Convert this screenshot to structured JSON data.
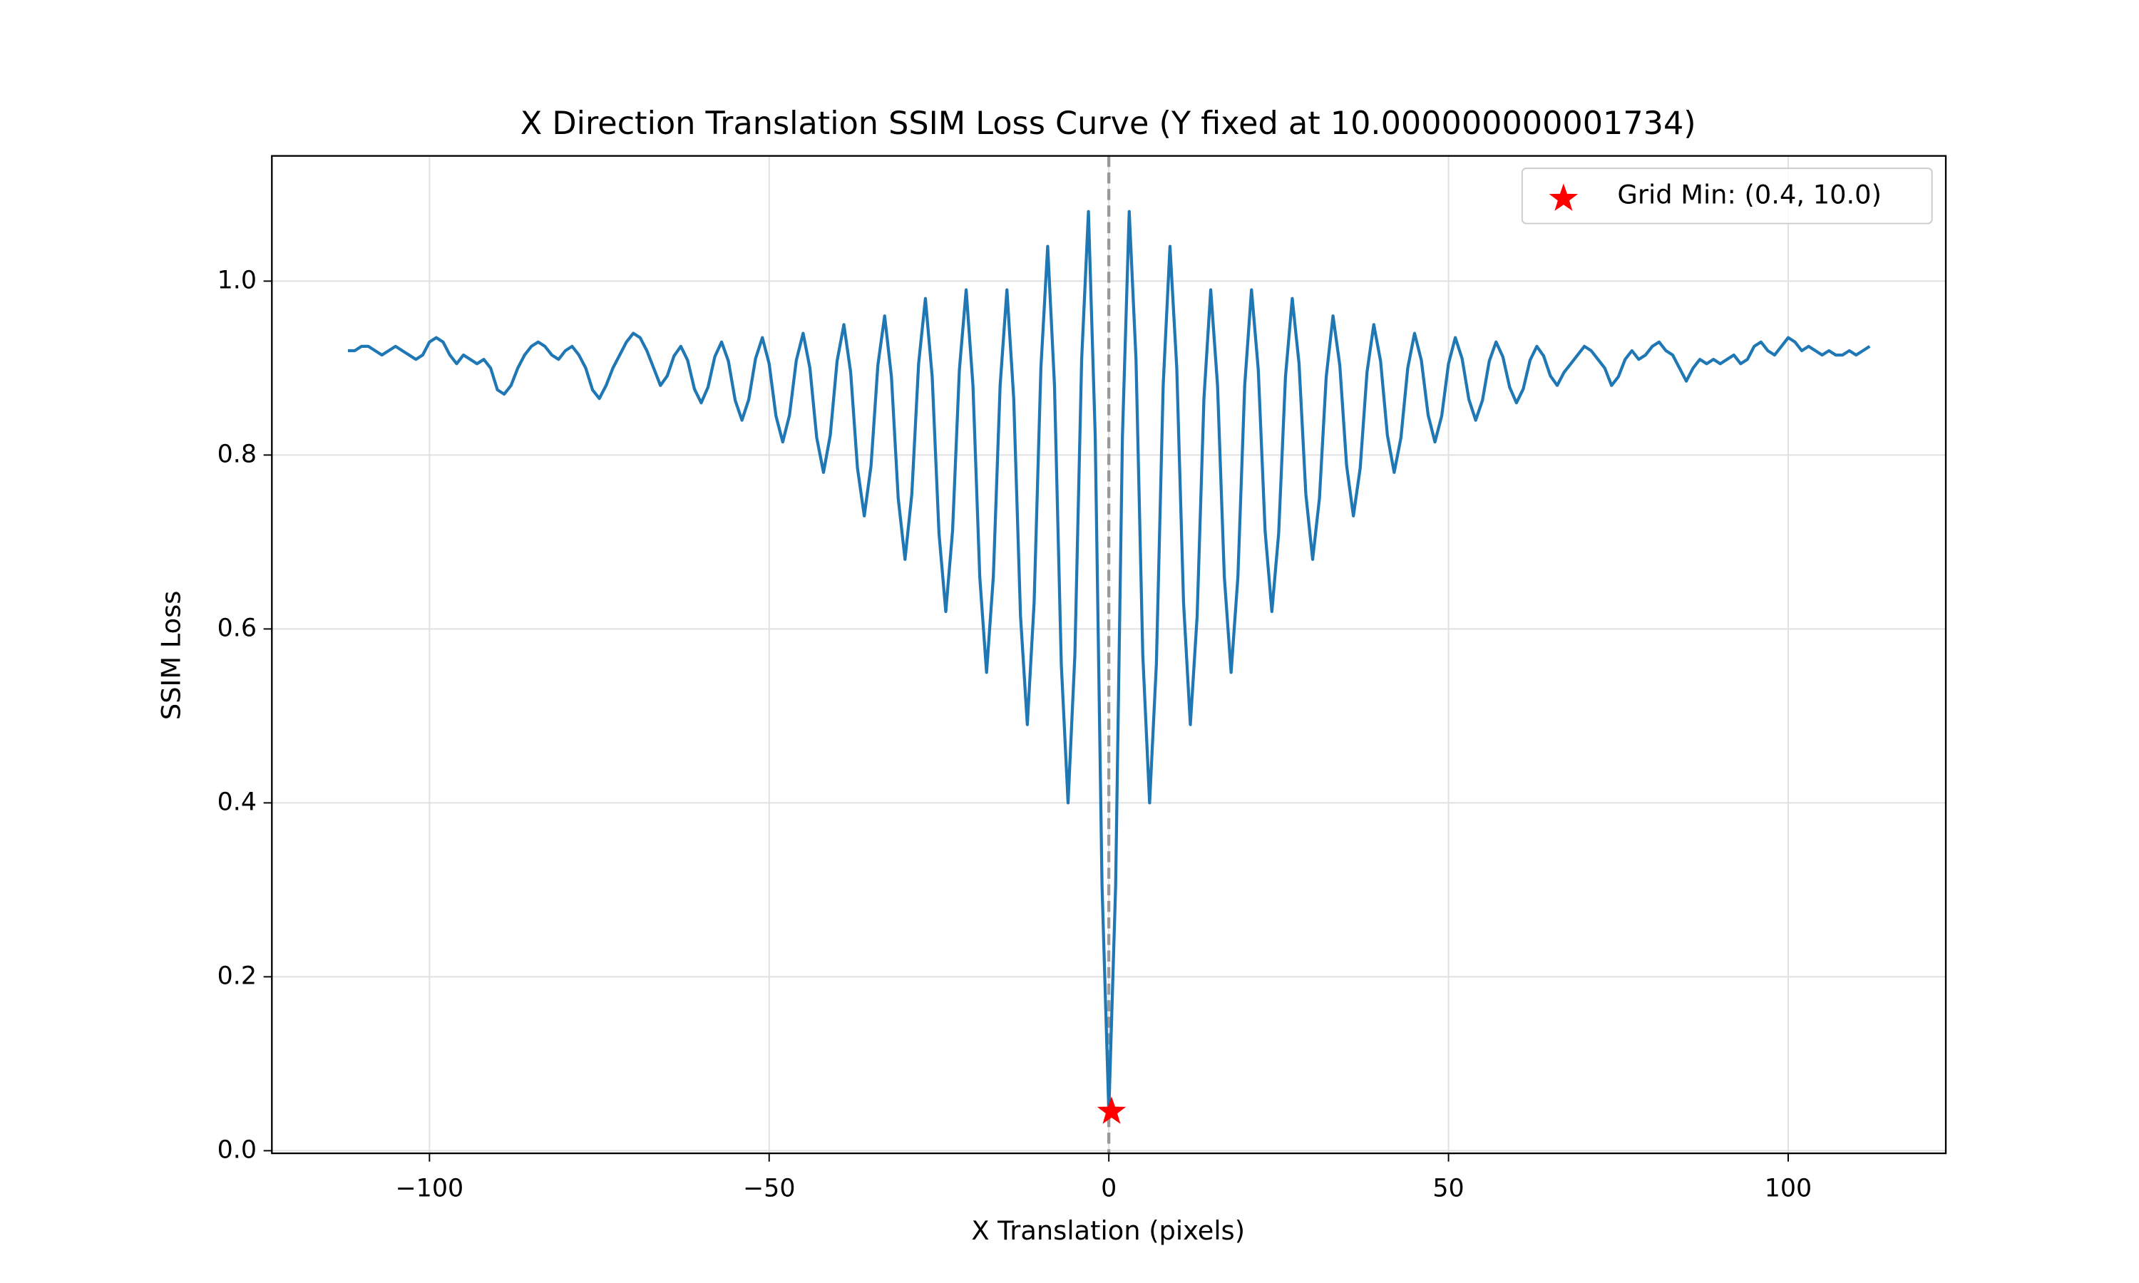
{
  "chart_data": {
    "type": "line",
    "title": "X Direction Translation SSIM Loss Curve (Y fixed at 10.000000000001734)",
    "x_label": "X Translation (pixels)",
    "y_label": "SSIM Loss",
    "xlim": [
      -123.2,
      123.2
    ],
    "ylim": [
      -0.003,
      1.144
    ],
    "xticks": [
      {
        "value": -100,
        "label": "−100"
      },
      {
        "value": -50,
        "label": "−50"
      },
      0,
      50,
      100
    ],
    "yticks": [
      {
        "value": 0,
        "label": "0.0"
      },
      0.2,
      0.4,
      0.6,
      0.8,
      {
        "value": 1,
        "label": "1.0"
      }
    ],
    "grid": true,
    "legend": "upper right",
    "vline": {
      "x": 0,
      "color": "#999999"
    },
    "marker": {
      "name": "Grid Min: (0.4, 10.0)",
      "x": 0.4,
      "y": 0.045,
      "color": "#ff0000"
    },
    "x": [
      -112,
      -111,
      -110,
      -109,
      -108,
      -107,
      -106,
      -105,
      -104,
      -103,
      -102,
      -101,
      -100,
      -99,
      -98,
      -97,
      -96,
      -95,
      -94,
      -93,
      -92,
      -91,
      -90,
      -89,
      -88,
      -87,
      -86,
      -85,
      -84,
      -83,
      -82,
      -81,
      -80,
      -79,
      -78,
      -77,
      -76,
      -75,
      -74,
      -73,
      -72,
      -71,
      -70,
      -69,
      -68,
      -67,
      -66,
      -65,
      -64,
      -63,
      -62,
      -61,
      -60,
      -59,
      -58,
      -57,
      -56,
      -55,
      -54,
      -53,
      -52,
      -51,
      -50,
      -49,
      -48,
      -47,
      -46,
      -45,
      -44,
      -43,
      -42,
      -41,
      -40,
      -39,
      -38,
      -37,
      -36,
      -35,
      -34,
      -33,
      -32,
      -31,
      -30,
      -29,
      -28,
      -27,
      -26,
      -25,
      -24,
      -23,
      -22,
      -21,
      -20,
      -19,
      -18,
      -17,
      -16,
      -15,
      -14,
      -13,
      -12,
      -11,
      -10,
      -9,
      -8,
      -7,
      -6,
      -5,
      -4,
      -3,
      -2,
      -1,
      0,
      1,
      2,
      3,
      4,
      5,
      6,
      7,
      8,
      9,
      10,
      11,
      12,
      13,
      14,
      15,
      16,
      17,
      18,
      19,
      20,
      21,
      22,
      23,
      24,
      25,
      26,
      27,
      28,
      29,
      30,
      31,
      32,
      33,
      34,
      35,
      36,
      37,
      38,
      39,
      40,
      41,
      42,
      43,
      44,
      45,
      46,
      47,
      48,
      49,
      50,
      51,
      52,
      53,
      54,
      55,
      56,
      57,
      58,
      59,
      60,
      61,
      62,
      63,
      64,
      65,
      66,
      67,
      68,
      69,
      70,
      71,
      72,
      73,
      74,
      75,
      76,
      77,
      78,
      79,
      80,
      81,
      82,
      83,
      84,
      85,
      86,
      87,
      88,
      89,
      90,
      91,
      92,
      93,
      94,
      95,
      96,
      97,
      98,
      99,
      100,
      101,
      102,
      103,
      104,
      105,
      106,
      107,
      108,
      109,
      110,
      111,
      112
    ],
    "series": [
      {
        "color": "#1f77b4",
        "values": [
          0.92,
          0.92,
          0.925,
          0.925,
          0.92,
          0.915,
          0.92,
          0.925,
          0.92,
          0.915,
          0.91,
          0.915,
          0.93,
          0.935,
          0.93,
          0.915,
          0.905,
          0.915,
          0.91,
          0.905,
          0.91,
          0.9,
          0.875,
          0.87,
          0.88,
          0.9,
          0.915,
          0.925,
          0.93,
          0.925,
          0.915,
          0.91,
          0.92,
          0.925,
          0.915,
          0.9,
          0.875,
          0.865,
          0.88,
          0.9,
          0.915,
          0.93,
          0.94,
          0.935,
          0.92,
          0.9,
          0.88,
          0.891,
          0.914,
          0.925,
          0.909,
          0.876,
          0.86,
          0.878,
          0.913,
          0.93,
          0.908,
          0.863,
          0.84,
          0.864,
          0.911,
          0.935,
          0.905,
          0.845,
          0.815,
          0.846,
          0.909,
          0.94,
          0.9,
          0.82,
          0.78,
          0.823,
          0.908,
          0.95,
          0.895,
          0.785,
          0.73,
          0.788,
          0.903,
          0.96,
          0.89,
          0.75,
          0.68,
          0.755,
          0.905,
          0.98,
          0.89,
          0.71,
          0.62,
          0.713,
          0.898,
          0.99,
          0.88,
          0.66,
          0.55,
          0.66,
          0.88,
          0.99,
          0.865,
          0.615,
          0.49,
          0.63,
          0.9,
          1.04,
          0.88,
          0.56,
          0.4,
          0.57,
          0.91,
          1.08,
          0.821,
          0.304,
          0.045,
          0.304,
          0.821,
          1.08,
          0.91,
          0.57,
          0.4,
          0.56,
          0.88,
          1.04,
          0.9,
          0.63,
          0.49,
          0.615,
          0.865,
          0.99,
          0.88,
          0.66,
          0.55,
          0.66,
          0.88,
          0.99,
          0.898,
          0.713,
          0.62,
          0.71,
          0.89,
          0.98,
          0.905,
          0.755,
          0.68,
          0.75,
          0.89,
          0.96,
          0.903,
          0.788,
          0.73,
          0.785,
          0.895,
          0.95,
          0.908,
          0.823,
          0.78,
          0.82,
          0.9,
          0.94,
          0.909,
          0.846,
          0.815,
          0.845,
          0.905,
          0.935,
          0.911,
          0.864,
          0.84,
          0.863,
          0.908,
          0.93,
          0.913,
          0.878,
          0.86,
          0.876,
          0.909,
          0.925,
          0.914,
          0.891,
          0.88,
          0.895,
          0.905,
          0.915,
          0.925,
          0.92,
          0.91,
          0.9,
          0.88,
          0.89,
          0.91,
          0.92,
          0.91,
          0.915,
          0.925,
          0.93,
          0.92,
          0.915,
          0.9,
          0.885,
          0.9,
          0.91,
          0.905,
          0.91,
          0.905,
          0.91,
          0.915,
          0.905,
          0.91,
          0.925,
          0.93,
          0.92,
          0.915,
          0.925,
          0.935,
          0.93,
          0.92,
          0.925,
          0.92,
          0.915,
          0.92,
          0.915,
          0.915,
          0.92,
          0.915,
          0.92,
          0.925
        ]
      }
    ]
  }
}
